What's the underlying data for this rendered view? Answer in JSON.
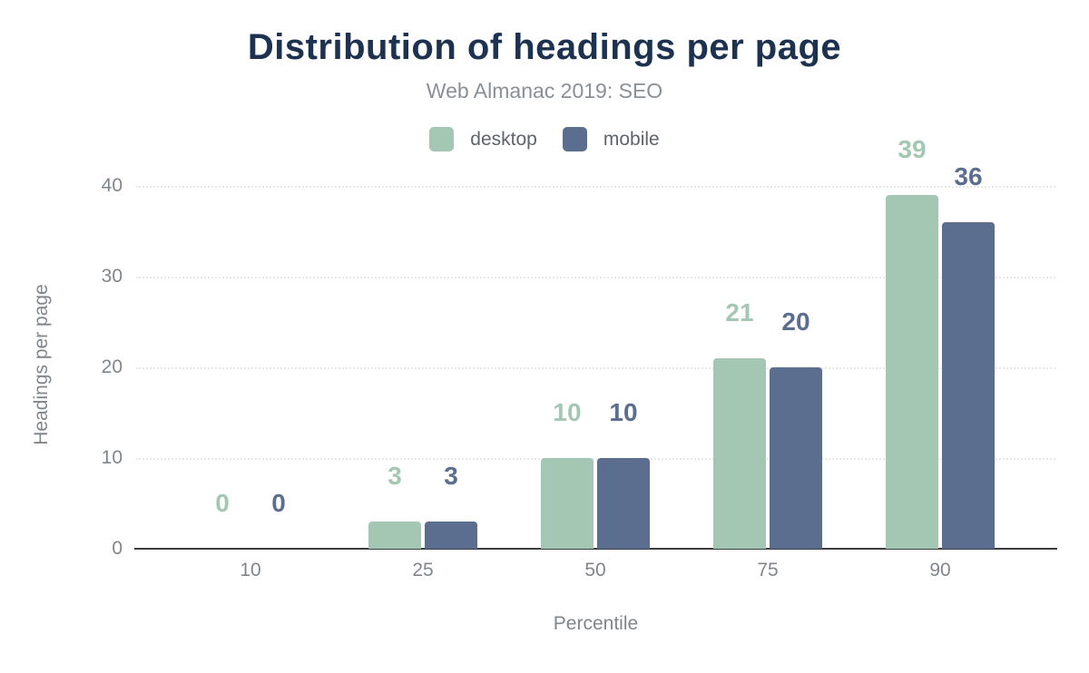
{
  "figure": {
    "title": "Distribution of headings per page",
    "subtitle": "Web Almanac 2019: SEO"
  },
  "chart_data": {
    "type": "bar",
    "title": "Distribution of headings per page",
    "subtitle": "Web Almanac 2019: SEO",
    "categories": [
      "10",
      "25",
      "50",
      "75",
      "90"
    ],
    "series": [
      {
        "name": "desktop",
        "color": "#a3c7b2",
        "values": [
          0,
          3,
          10,
          21,
          39
        ]
      },
      {
        "name": "mobile",
        "color": "#5b6e8f",
        "values": [
          0,
          3,
          10,
          20,
          36
        ]
      }
    ],
    "xlabel": "Percentile",
    "ylabel": "Headings per page",
    "ylim": [
      0,
      40
    ],
    "yticks": [
      0,
      10,
      20,
      30,
      40
    ],
    "grid": "horizontal-dotted",
    "legend_position": "top",
    "value_labels": true
  },
  "colors": {
    "background": "#ffffff",
    "title": "#1d3150",
    "subtitle": "#8a9096",
    "axis_text": "#80868b",
    "legend_text": "#5f646a",
    "gridline": "#e8e8e8",
    "axis_line": "#3a3c40",
    "desktop": "#a3c7b2",
    "mobile": "#5b6e8f"
  }
}
